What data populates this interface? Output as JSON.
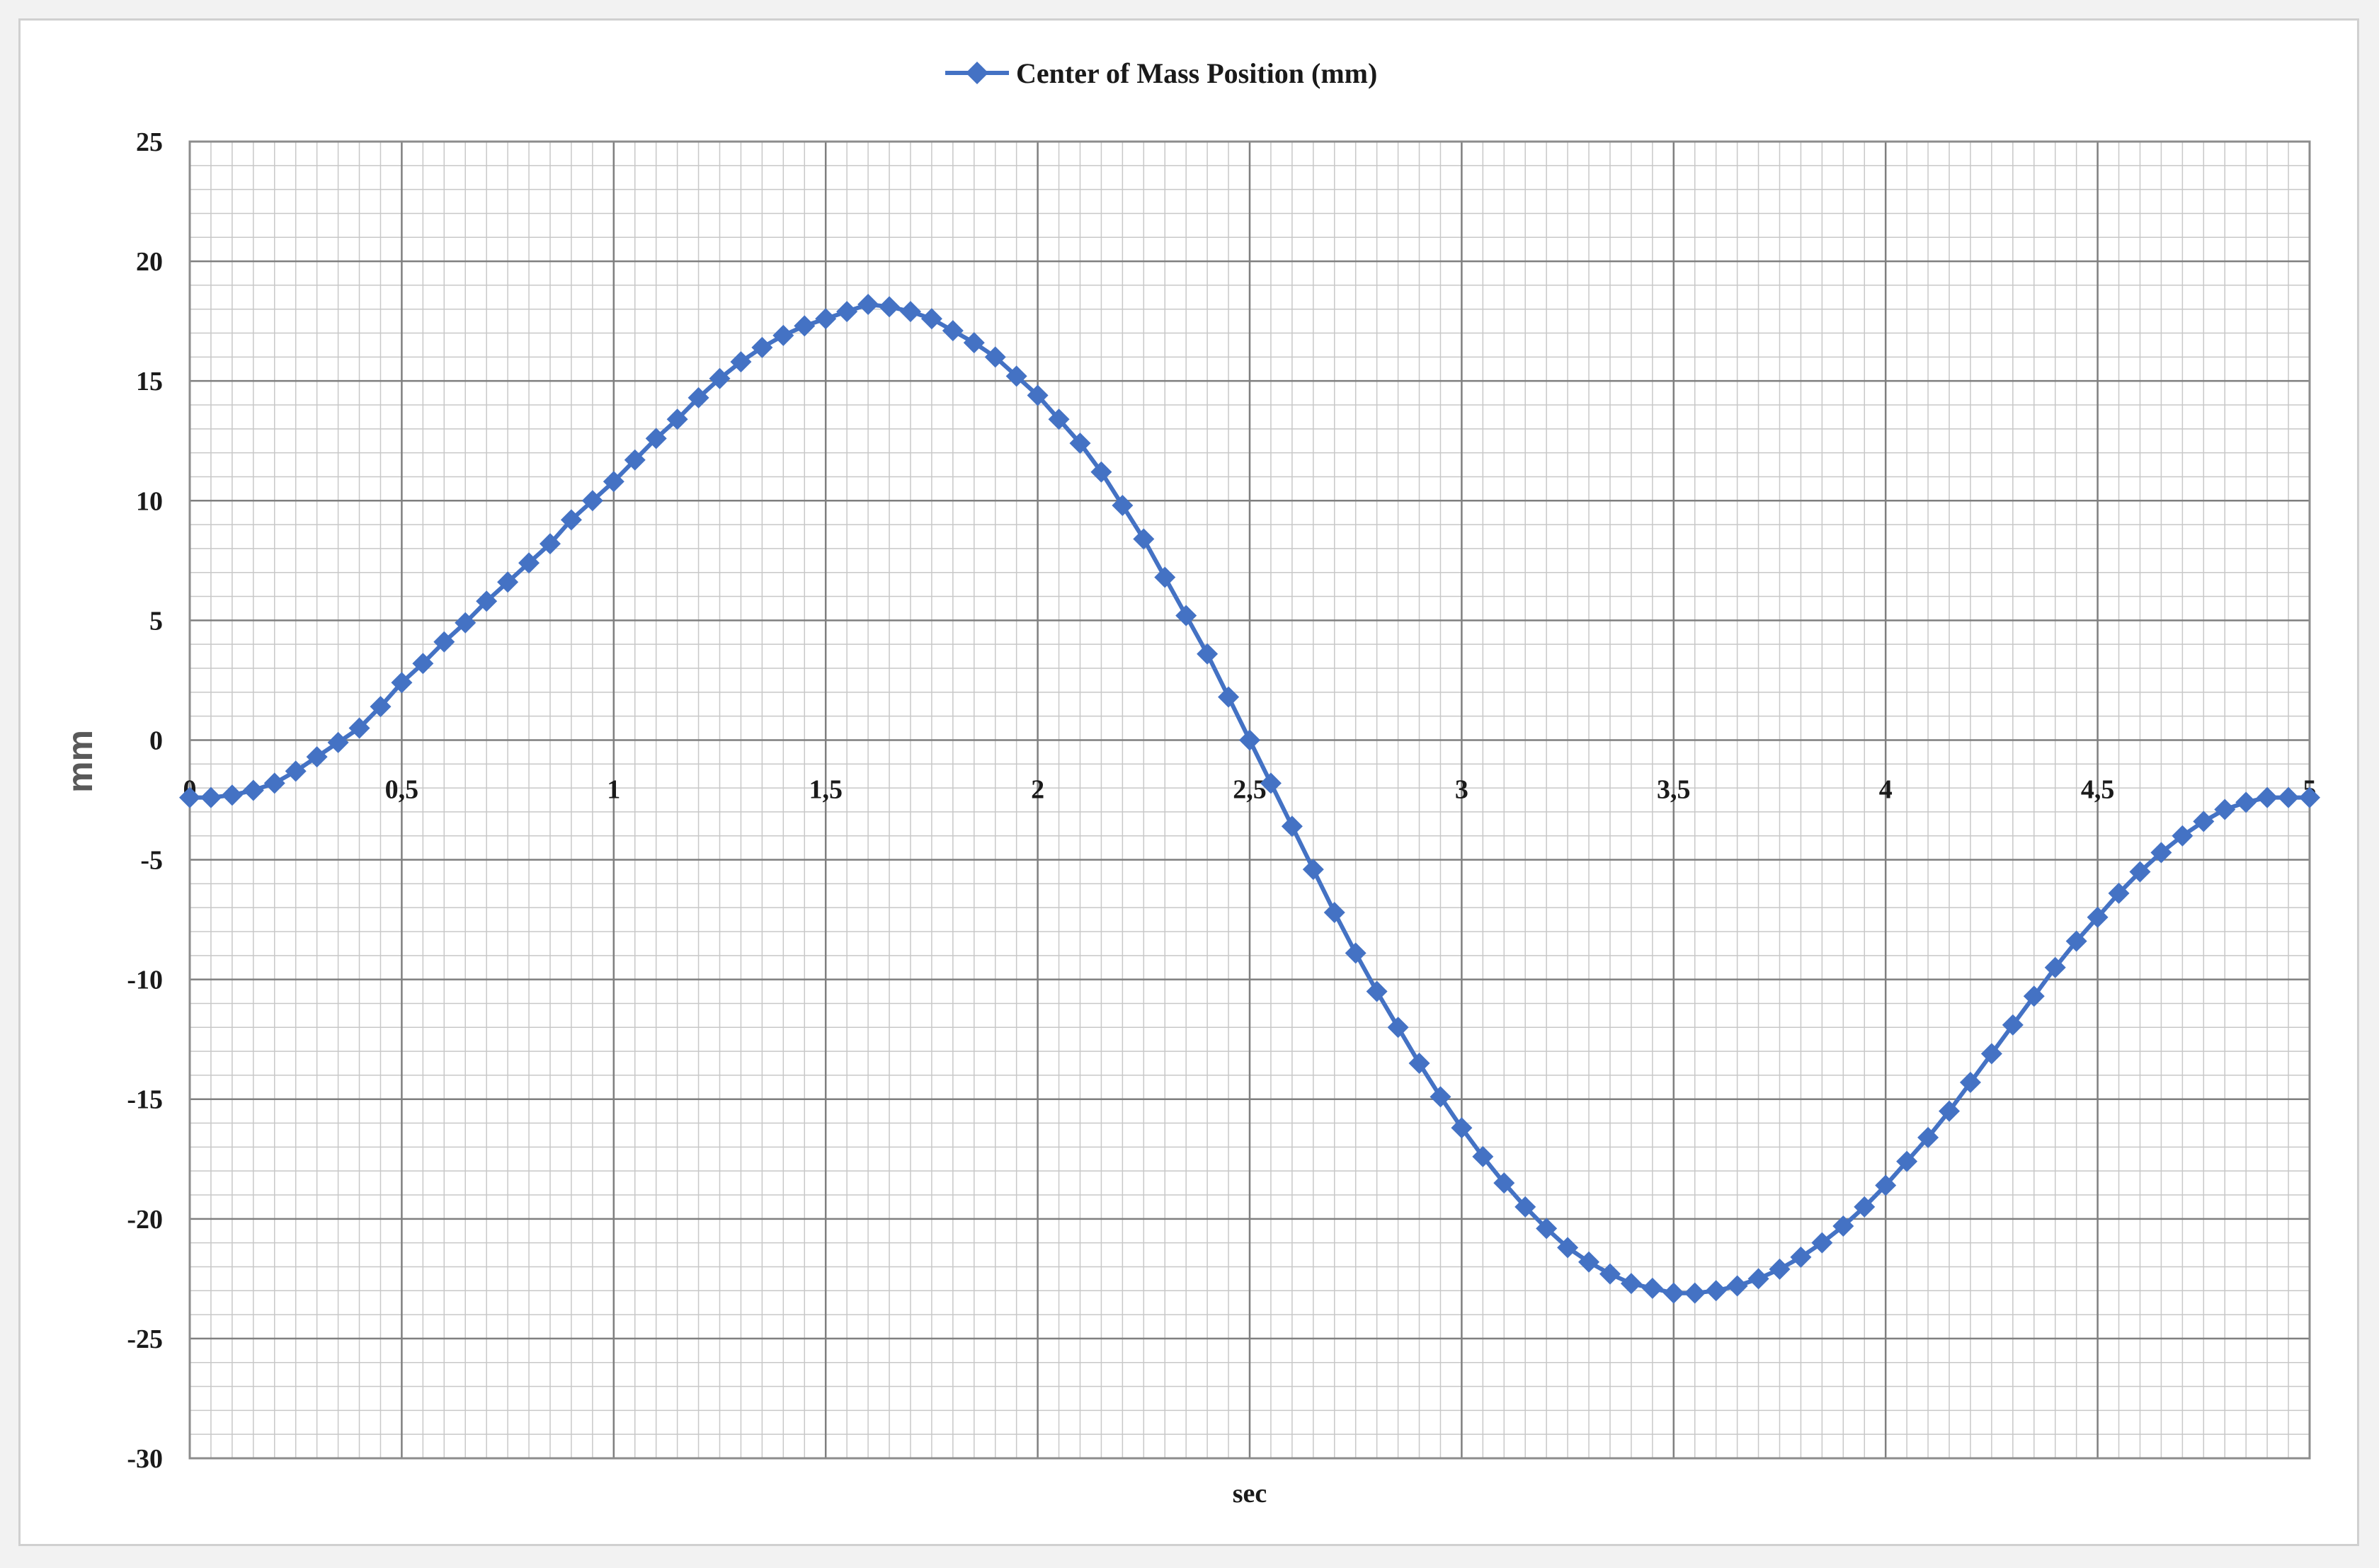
{
  "chart_data": {
    "type": "line",
    "title": "",
    "xlabel": "sec",
    "ylabel": "mm",
    "xlim": [
      0,
      5
    ],
    "ylim": [
      -30,
      25
    ],
    "x_ticks": [
      0,
      0.5,
      1,
      1.5,
      2,
      2.5,
      3,
      3.5,
      4,
      4.5,
      5
    ],
    "x_tick_labels": [
      "0",
      "0,5",
      "1",
      "1,5",
      "2",
      "2,5",
      "3",
      "3,5",
      "4",
      "4,5",
      "5"
    ],
    "y_ticks": [
      25,
      20,
      15,
      10,
      5,
      0,
      -5,
      -10,
      -15,
      -20,
      -25,
      -30
    ],
    "y_tick_labels": [
      "25",
      "20",
      "15",
      "10",
      "5",
      "0",
      "-5",
      "-10",
      "-15",
      "-20",
      "-25",
      "-30"
    ],
    "grid": "major and minor",
    "legend_position": "top-center",
    "series_color": "#4472c4",
    "marker": "diamond",
    "series": [
      {
        "name": "Center of Mass Position (mm)",
        "x": [
          0,
          0.05,
          0.1,
          0.15,
          0.2,
          0.25,
          0.3,
          0.35,
          0.4,
          0.45,
          0.5,
          0.55,
          0.6,
          0.65,
          0.7,
          0.75,
          0.8,
          0.85,
          0.9,
          0.95,
          1.0,
          1.05,
          1.1,
          1.15,
          1.2,
          1.25,
          1.3,
          1.35,
          1.4,
          1.45,
          1.5,
          1.55,
          1.6,
          1.65,
          1.7,
          1.75,
          1.8,
          1.85,
          1.9,
          1.95,
          2.0,
          2.05,
          2.1,
          2.15,
          2.2,
          2.25,
          2.3,
          2.35,
          2.4,
          2.45,
          2.5,
          2.55,
          2.6,
          2.65,
          2.7,
          2.75,
          2.8,
          2.85,
          2.9,
          2.95,
          3.0,
          3.05,
          3.1,
          3.15,
          3.2,
          3.25,
          3.3,
          3.35,
          3.4,
          3.45,
          3.5,
          3.55,
          3.6,
          3.65,
          3.7,
          3.75,
          3.8,
          3.85,
          3.9,
          3.95,
          4.0,
          4.05,
          4.1,
          4.15,
          4.2,
          4.25,
          4.3,
          4.35,
          4.4,
          4.45,
          4.5,
          4.55,
          4.6,
          4.65,
          4.7,
          4.75,
          4.8,
          4.85,
          4.9,
          4.95,
          5.0
        ],
        "y": [
          -2.4,
          -2.4,
          -2.3,
          -2.1,
          -1.8,
          -1.3,
          -0.7,
          -0.1,
          0.5,
          1.4,
          2.4,
          3.2,
          4.1,
          4.9,
          5.8,
          6.6,
          7.4,
          8.2,
          9.2,
          10.0,
          10.8,
          11.7,
          12.6,
          13.4,
          14.3,
          15.1,
          15.8,
          16.4,
          16.9,
          17.3,
          17.6,
          17.9,
          18.2,
          18.1,
          17.9,
          17.6,
          17.1,
          16.6,
          16.0,
          15.2,
          14.4,
          13.4,
          12.4,
          11.2,
          9.8,
          8.4,
          6.8,
          5.2,
          3.6,
          1.8,
          0.0,
          -1.8,
          -3.6,
          -5.4,
          -7.2,
          -8.9,
          -10.5,
          -12.0,
          -13.5,
          -14.9,
          -16.2,
          -17.4,
          -18.5,
          -19.5,
          -20.4,
          -21.2,
          -21.8,
          -22.3,
          -22.7,
          -22.9,
          -23.1,
          -23.1,
          -23.0,
          -22.8,
          -22.5,
          -22.1,
          -21.6,
          -21.0,
          -20.3,
          -19.5,
          -18.6,
          -17.6,
          -16.6,
          -15.5,
          -14.3,
          -13.1,
          -11.9,
          -10.7,
          -9.5,
          -8.4,
          -7.4,
          -6.4,
          -5.5,
          -4.7,
          -4.0,
          -3.4,
          -2.9,
          -2.6,
          -2.4,
          -2.4,
          -2.4
        ]
      }
    ]
  }
}
